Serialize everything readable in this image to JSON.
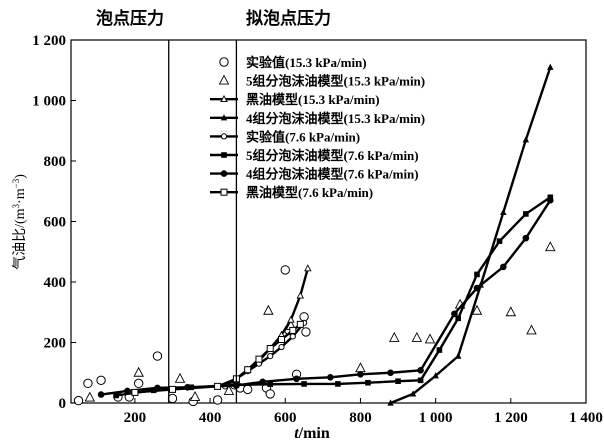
{
  "chart_data": {
    "type": "line",
    "xlabel_var": "t",
    "xlabel_unit": "/min",
    "ylabel_main": "气油比/(m",
    "ylabel_sup1": "3",
    "ylabel_mid": "·m",
    "ylabel_sup2": "−3",
    "ylabel_end": ")",
    "xlim": [
      30,
      1400
    ],
    "ylim": [
      0,
      1200
    ],
    "xticks": [
      {
        "value": 200,
        "label": "200"
      },
      {
        "value": 400,
        "label": "400"
      },
      {
        "value": 600,
        "label": "600"
      },
      {
        "value": 800,
        "label": "800"
      },
      {
        "value": 1000,
        "label": "1 000"
      },
      {
        "value": 1200,
        "label": "1 200"
      },
      {
        "value": 1400,
        "label": "1 400"
      }
    ],
    "yticks": [
      {
        "value": 0,
        "label": "0"
      },
      {
        "value": 200,
        "label": "200"
      },
      {
        "value": 400,
        "label": "400"
      },
      {
        "value": 600,
        "label": "600"
      },
      {
        "value": 800,
        "label": "800"
      },
      {
        "value": 1000,
        "label": "1 000"
      },
      {
        "value": 1200,
        "label": "1 200"
      }
    ],
    "annotations": [
      {
        "text": "泡点压力",
        "line_x": 290
      },
      {
        "text": "拟泡点压力",
        "line_x": 470
      }
    ],
    "series": [
      {
        "name": "实验值(15.3 kPa/min)",
        "style": "none",
        "marker": "circle-open",
        "x": [
          50,
          75,
          110,
          155,
          185,
          210,
          260,
          300,
          355,
          420,
          465,
          480,
          500,
          550,
          560,
          600,
          610,
          630,
          650,
          655
        ],
        "y": [
          8,
          65,
          75,
          20,
          20,
          65,
          155,
          15,
          5,
          10,
          60,
          50,
          45,
          50,
          30,
          440,
          240,
          95,
          285,
          235
        ]
      },
      {
        "name": "5组分泡沫油模型(15.3 kPa/min)",
        "style": "none",
        "marker": "triangle-open",
        "x": [
          80,
          210,
          320,
          360,
          450,
          470,
          555,
          615,
          800,
          890,
          950,
          985,
          1065,
          1110,
          1200,
          1255,
          1305
        ],
        "y": [
          18,
          100,
          80,
          20,
          40,
          70,
          305,
          255,
          115,
          215,
          215,
          210,
          325,
          305,
          300,
          240,
          515
        ]
      },
      {
        "name": "黑油模型(15.3 kPa/min)",
        "style": "line",
        "marker": "triangle-open-small",
        "x": [
          470,
          500,
          530,
          560,
          590,
          615,
          640,
          660
        ],
        "y": [
          80,
          110,
          140,
          180,
          225,
          275,
          355,
          445
        ]
      },
      {
        "name": "4组分泡沫油模型(15.3 kPa/min)",
        "style": "line",
        "marker": "triangle-filled",
        "x": [
          880,
          940,
          1000,
          1060,
          1120,
          1180,
          1240,
          1305
        ],
        "y": [
          0,
          30,
          90,
          155,
          390,
          630,
          870,
          1110
        ]
      },
      {
        "name": "实验值(7.6 kPa/min)",
        "style": "line",
        "marker": "circle-open-small",
        "x": [
          440,
          470,
          500,
          530,
          560,
          590,
          620,
          650
        ],
        "y": [
          55,
          80,
          105,
          130,
          155,
          185,
          220,
          265
        ]
      },
      {
        "name": "5组分泡沫油模型(7.6 kPa/min)",
        "style": "line",
        "marker": "square-filled",
        "x": [
          150,
          250,
          350,
          470,
          560,
          650,
          740,
          820,
          900,
          960,
          1010,
          1060,
          1110,
          1170,
          1240,
          1305
        ],
        "y": [
          25,
          42,
          52,
          60,
          62,
          63,
          63,
          67,
          72,
          75,
          175,
          280,
          425,
          535,
          625,
          680
        ]
      },
      {
        "name": "4组分泡沫油模型(7.6 kPa/min)",
        "style": "line",
        "marker": "circle-filled",
        "x": [
          110,
          180,
          260,
          340,
          420,
          470,
          540,
          630,
          720,
          800,
          880,
          960,
          1050,
          1110,
          1180,
          1240,
          1305
        ],
        "y": [
          28,
          40,
          50,
          52,
          55,
          58,
          70,
          80,
          85,
          95,
          100,
          108,
          295,
          380,
          450,
          545,
          670
        ]
      },
      {
        "name": "黑油模型(7.6 kPa/min)",
        "style": "line",
        "marker": "square-open",
        "x": [
          200,
          300,
          420,
          470,
          500,
          530,
          560,
          590,
          620,
          640
        ],
        "y": [
          35,
          45,
          55,
          80,
          110,
          145,
          180,
          210,
          240,
          260
        ]
      }
    ]
  }
}
